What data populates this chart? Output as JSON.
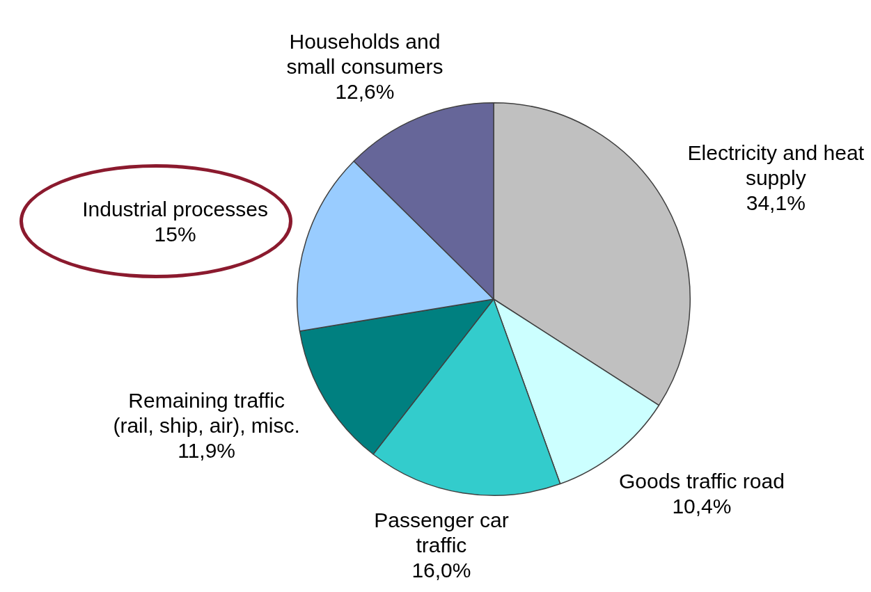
{
  "chart_data": {
    "type": "pie",
    "categories": [
      "Electricity and heat supply",
      "Goods traffic road",
      "Passenger car traffic",
      "Remaining traffic (rail, ship, air), misc.",
      "Industrial processes",
      "Households and small consumers"
    ],
    "values": [
      34.1,
      10.4,
      16.0,
      11.9,
      15,
      12.6
    ],
    "value_labels": [
      "34,1%",
      "10,4%",
      "16,0%",
      "11,9%",
      "15%",
      "12,6%"
    ],
    "colors": [
      "#c0c0c0",
      "#ccffff",
      "#33cccc",
      "#008080",
      "#99ccff",
      "#666699"
    ],
    "legend": false
  }
}
